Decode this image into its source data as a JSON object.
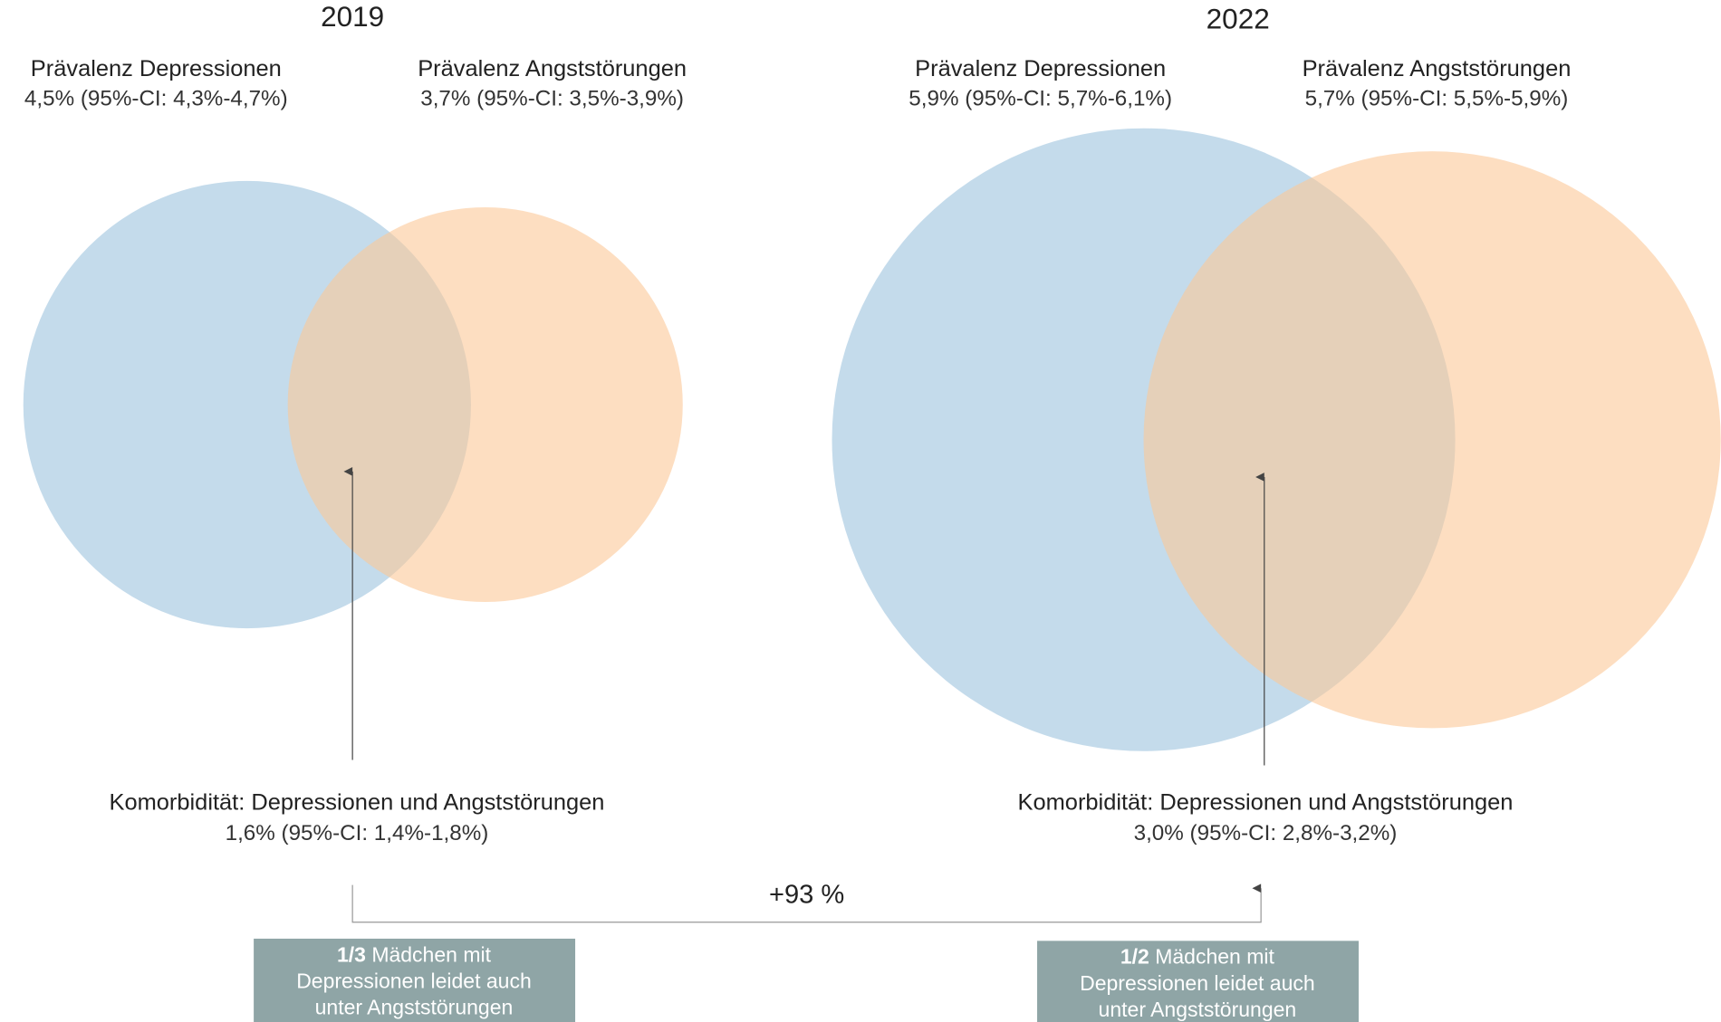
{
  "panels": [
    {
      "year": "2019",
      "depression": {
        "label": "Prävalenz Depressionen",
        "value": "4,5% (95%-CI: 4,3%-4,7%)"
      },
      "anxiety": {
        "label": "Prävalenz Angststörungen",
        "value": "3,7% (95%-CI: 3,5%-3,9%)"
      },
      "comorbidity": {
        "label": "Komorbidität: Depressionen und Angststörungen",
        "value": "1,6% (95%-CI: 1,4%-1,8%)"
      },
      "note": {
        "fraction": "1/3",
        "lines": [
          " Mädchen mit",
          "Depressionen leidet auch",
          "unter Angststörungen"
        ]
      }
    },
    {
      "year": "2022",
      "depression": {
        "label": "Prävalenz Depressionen",
        "value": "5,9% (95%-CI: 5,7%-6,1%)"
      },
      "anxiety": {
        "label": "Prävalenz Angststörungen",
        "value": "5,7% (95%-CI: 5,5%-5,9%)"
      },
      "comorbidity": {
        "label": "Komorbidität: Depressionen und Angststörungen",
        "value": "3,0% (95%-CI: 2,8%-3,2%)"
      },
      "note": {
        "fraction": "1/2",
        "lines": [
          " Mädchen mit",
          "Depressionen leidet auch",
          "unter Angststörungen"
        ]
      }
    }
  ],
  "change": "+93 %"
}
